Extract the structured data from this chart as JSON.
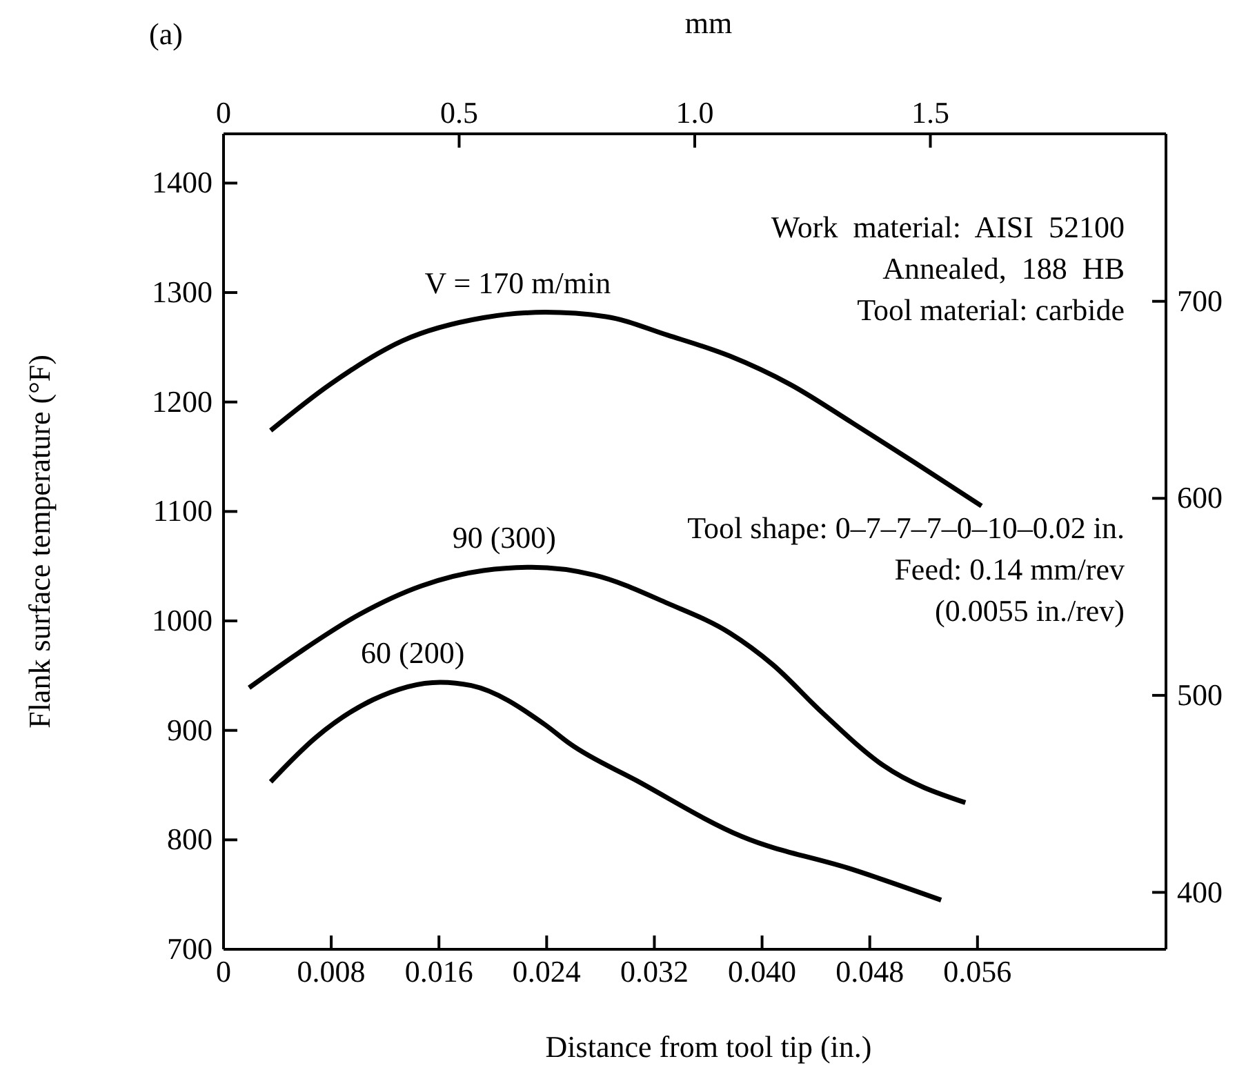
{
  "chart_data": {
    "type": "line",
    "title": "(a)",
    "xlabel": "Distance from tool tip (in.)",
    "ylabel": "Flank surface temperature (°F)",
    "x2label": "mm",
    "xlim": [
      0,
      0.07
    ],
    "xticks": [
      0,
      0.008,
      0.016,
      0.024,
      0.032,
      {
        "value": 0.04,
        "label": "0.040"
      },
      0.048,
      0.056
    ],
    "x2lim": [
      0,
      2.0
    ],
    "x2ticks": [
      0,
      0.5,
      {
        "value": 1,
        "label": "1.0"
      },
      1.5
    ],
    "ylim": [
      700,
      1445
    ],
    "yticks": [
      700,
      800,
      900,
      1000,
      1100,
      1200,
      1300,
      1400
    ],
    "y2lim": [
      371.1,
      785
    ],
    "y2ticks": [
      400,
      500,
      600,
      700
    ],
    "grid": false,
    "legend": false,
    "marker": "none",
    "line_style": "solid",
    "annotations": [
      "Work  material:  AISI  52100",
      "Annealed,  188  HB",
      "Tool material: carbide",
      "Tool shape: 0–7–7–7–0–10–0.02 in.",
      "Feed: 0.14 mm/rev",
      "(0.0055 in./rev)"
    ],
    "series": [
      {
        "name": "V = 170 m/min",
        "color": "#000000",
        "x": [
          0.0035,
          0.0079,
          0.0133,
          0.0193,
          0.0239,
          0.0284,
          0.033,
          0.0376,
          0.0421,
          0.0467,
          0.0513,
          0.0563
        ],
        "values": [
          1174,
          1216,
          1256,
          1277,
          1282,
          1278,
          1261,
          1242,
          1216,
          1181,
          1145,
          1105
        ]
      },
      {
        "name": "90 (300)",
        "color": "#000000",
        "x": [
          0.0019,
          0.0056,
          0.0101,
          0.0147,
          0.0193,
          0.0229,
          0.0275,
          0.033,
          0.0376,
          0.0408,
          0.0444,
          0.049,
          0.0551
        ],
        "values": [
          939,
          971,
          1006,
          1032,
          1046,
          1049,
          1042,
          1016,
          989,
          960,
          917,
          868,
          834
        ]
      },
      {
        "name": "60 (200)",
        "color": "#000000",
        "x": [
          0.0035,
          0.0069,
          0.0111,
          0.0161,
          0.0184,
          0.0239,
          0.0257,
          0.0307,
          0.0385,
          0.0467,
          0.0533
        ],
        "values": [
          853,
          894,
          928,
          944,
          941,
          905,
          888,
          854,
          803,
          773,
          745
        ]
      }
    ]
  }
}
